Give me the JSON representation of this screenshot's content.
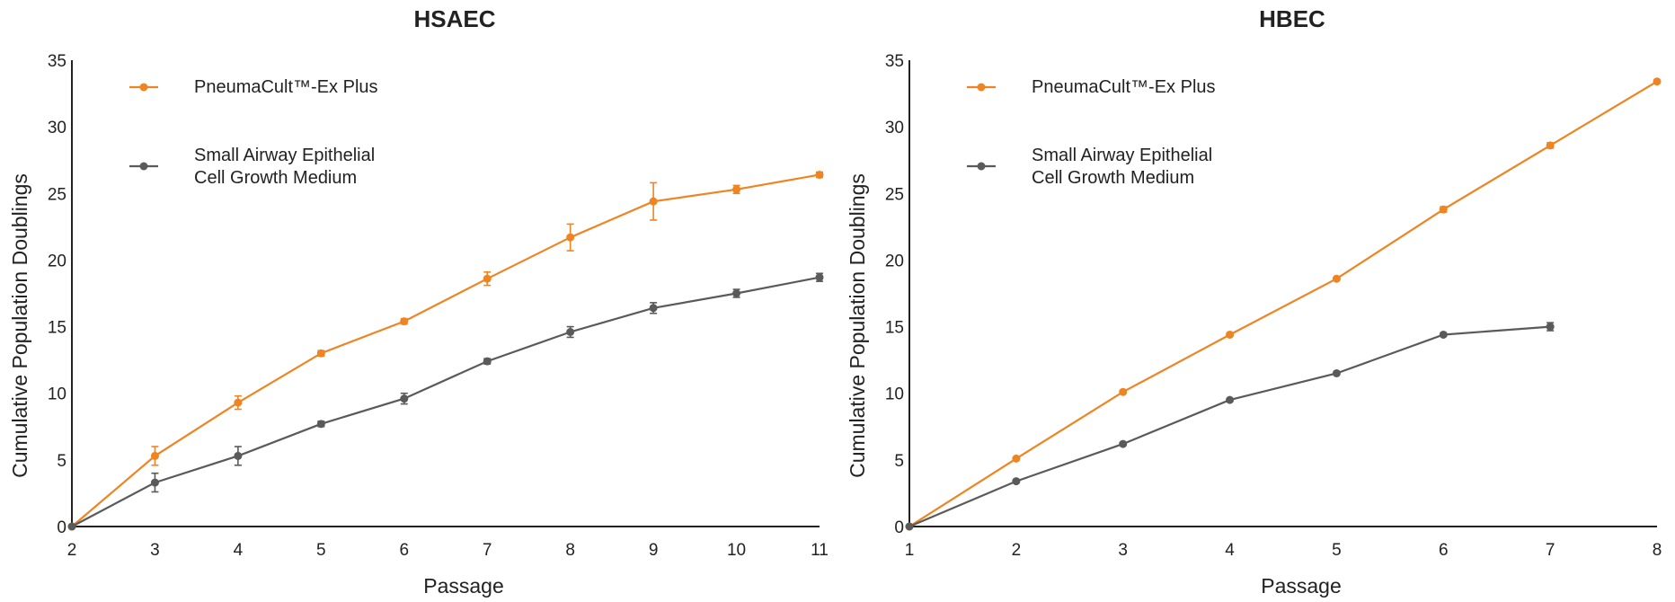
{
  "colors": {
    "orange": "#ee8522",
    "gray": "#5a5a5a",
    "axis": "#222222"
  },
  "chart_data": [
    {
      "type": "line",
      "title": "HSAEC",
      "xlabel": "Passage",
      "ylabel": "Cumulative Population Doublings",
      "xlim": [
        2,
        11
      ],
      "ylim": [
        0,
        35
      ],
      "xticks": [
        2,
        3,
        4,
        5,
        6,
        7,
        8,
        9,
        10,
        11
      ],
      "yticks": [
        0,
        5,
        10,
        15,
        20,
        25,
        30,
        35
      ],
      "legend": [
        "PneumaCult™-Ex Plus",
        "Small Airway Epithelial|Cell Growth Medium"
      ],
      "series": [
        {
          "name": "PneumaCult™-Ex Plus",
          "color": "orange",
          "x": [
            2,
            3,
            4,
            5,
            6,
            7,
            8,
            9,
            10,
            11
          ],
          "y": [
            0,
            5.3,
            9.3,
            13.0,
            15.4,
            18.6,
            21.7,
            24.4,
            25.3,
            26.4
          ],
          "err": [
            0,
            0.7,
            0.5,
            0.2,
            0.2,
            0.5,
            1.0,
            1.4,
            0.3,
            0.2
          ]
        },
        {
          "name": "Small Airway Epithelial Cell Growth Medium",
          "color": "gray",
          "x": [
            2,
            3,
            4,
            5,
            6,
            7,
            8,
            9,
            10,
            11
          ],
          "y": [
            0,
            3.3,
            5.3,
            7.7,
            9.6,
            12.4,
            14.6,
            16.4,
            17.5,
            18.7
          ],
          "err": [
            0,
            0.7,
            0.7,
            0.2,
            0.4,
            0.2,
            0.4,
            0.4,
            0.3,
            0.3
          ]
        }
      ]
    },
    {
      "type": "line",
      "title": "HBEC",
      "xlabel": "Passage",
      "ylabel": "Cumulative Population Doublings",
      "xlim": [
        1,
        8
      ],
      "ylim": [
        0,
        35
      ],
      "xticks": [
        1,
        2,
        3,
        4,
        5,
        6,
        7,
        8
      ],
      "yticks": [
        0,
        5,
        10,
        15,
        20,
        25,
        30,
        35
      ],
      "legend": [
        "PneumaCult™-Ex Plus",
        "Small Airway Epithelial|Cell Growth Medium"
      ],
      "series": [
        {
          "name": "PneumaCult™-Ex Plus",
          "color": "orange",
          "x": [
            1,
            2,
            3,
            4,
            5,
            6,
            7,
            8
          ],
          "y": [
            0,
            5.1,
            10.1,
            14.4,
            18.6,
            23.8,
            28.6,
            33.4
          ],
          "err": [
            0,
            0.1,
            0.1,
            0.1,
            0.1,
            0.2,
            0.2,
            0.1
          ]
        },
        {
          "name": "Small Airway Epithelial Cell Growth Medium",
          "color": "gray",
          "x": [
            1,
            2,
            3,
            4,
            5,
            6,
            7
          ],
          "y": [
            0,
            3.4,
            6.2,
            9.5,
            11.5,
            14.4,
            15.0
          ],
          "err": [
            0,
            0.1,
            0.1,
            0.1,
            0.1,
            0.1,
            0.3
          ]
        }
      ]
    }
  ]
}
